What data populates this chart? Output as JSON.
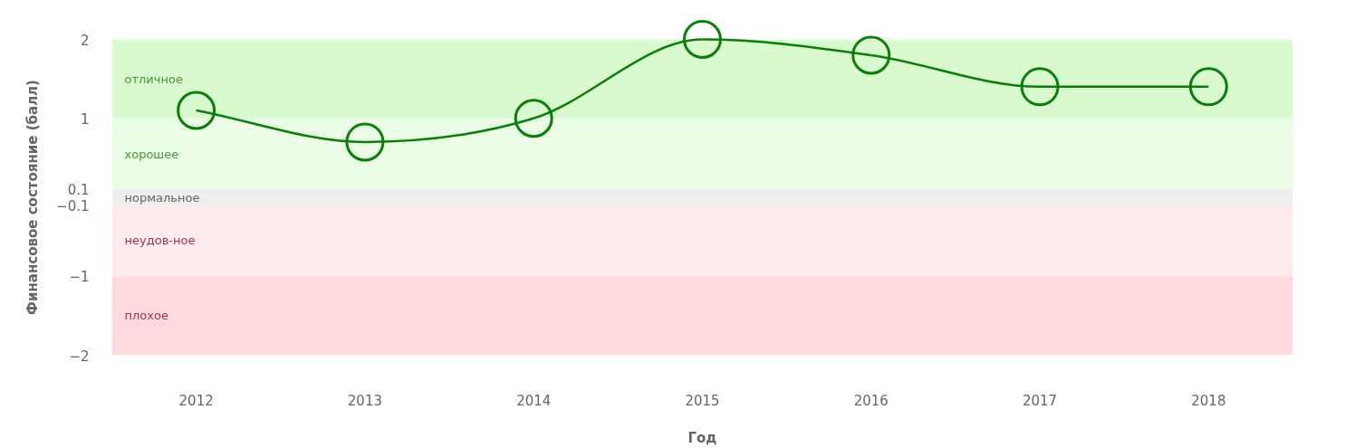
{
  "chart_data": {
    "type": "line",
    "xlabel": "Год",
    "ylabel": "Финансовое состояние (балл)",
    "categories": [
      "2012",
      "2013",
      "2014",
      "2015",
      "2016",
      "2017",
      "2018"
    ],
    "series": [
      {
        "color": "#0b7d0b",
        "values": [
          1.1,
          0.7,
          1.0,
          2.0,
          1.8,
          1.4,
          1.4
        ]
      }
    ],
    "marker": "circle",
    "ylim": [
      -2,
      2
    ],
    "yticks": [
      2,
      1,
      0.1,
      {
        "value": -0.1,
        "label": "−0.1"
      },
      {
        "value": -1,
        "label": "−1"
      },
      {
        "value": -2,
        "label": "−2"
      }
    ],
    "bands": [
      {
        "axis": "y",
        "from": 1,
        "to": 2,
        "label": "отличное",
        "color": "#d9f9cf"
      },
      {
        "axis": "y",
        "from": 0.1,
        "to": 1,
        "label": "хорошее",
        "color": "#ebfce6"
      },
      {
        "axis": "y",
        "from": -0.1,
        "to": 0.1,
        "label": "нормальное",
        "color": "#eeeeee"
      },
      {
        "axis": "y",
        "from": -1,
        "to": -0.1,
        "label": "неудов-ное",
        "color": "#ffebee"
      },
      {
        "axis": "y",
        "from": -2,
        "to": -1,
        "label": "плохое",
        "color": "#ffd9dd"
      }
    ]
  }
}
